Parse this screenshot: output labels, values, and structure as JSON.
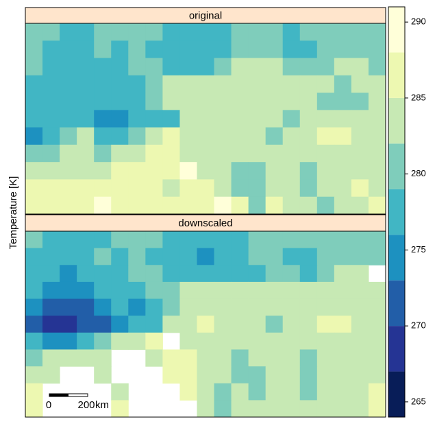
{
  "panels": [
    {
      "title": "original",
      "grid": [
        [
          280,
          279,
          277,
          277,
          280,
          279,
          280,
          280,
          277,
          277,
          277,
          277,
          280,
          280,
          279,
          277,
          280,
          280,
          280,
          280,
          280
        ],
        [
          280,
          278,
          277,
          277,
          279,
          277,
          280,
          277,
          277,
          277,
          278,
          277,
          280,
          281,
          280,
          277,
          278,
          280,
          281,
          280,
          280
        ],
        [
          280,
          278,
          277,
          277,
          277,
          277,
          279,
          280,
          277,
          278,
          277,
          281,
          283,
          283,
          283,
          280,
          281,
          281,
          282,
          283,
          281
        ],
        [
          278,
          277,
          277,
          277,
          277,
          277,
          277,
          280,
          283,
          283,
          283,
          283,
          283,
          283,
          283,
          283,
          283,
          283,
          281,
          283,
          283
        ],
        [
          278,
          278,
          277,
          277,
          277,
          277,
          277,
          280,
          283,
          283,
          283,
          283,
          283,
          283,
          283,
          283,
          283,
          280,
          280,
          281,
          283
        ],
        [
          277,
          276,
          276,
          276,
          275,
          274,
          276,
          276,
          278,
          283,
          283,
          284,
          283,
          283,
          283,
          280,
          283,
          283,
          283,
          283,
          283
        ],
        [
          275,
          277,
          280,
          283,
          278,
          278,
          280,
          283,
          285,
          283,
          283,
          283,
          283,
          283,
          280,
          283,
          283,
          285,
          285,
          283,
          283
        ],
        [
          280,
          280,
          283,
          283,
          280,
          283,
          284,
          285,
          285,
          283,
          283,
          283,
          283,
          283,
          283,
          283,
          283,
          283,
          283,
          283,
          283
        ],
        [
          283,
          283,
          283,
          284,
          283,
          285,
          285,
          285,
          286,
          288,
          283,
          283,
          280,
          280,
          283,
          283,
          281,
          283,
          283,
          283,
          283
        ],
        [
          285,
          285,
          285,
          285,
          285,
          285,
          285,
          285,
          283,
          285,
          285,
          283,
          280,
          280,
          283,
          283,
          280,
          283,
          283,
          285,
          283
        ],
        [
          285,
          285,
          285,
          285,
          289,
          285,
          285,
          285,
          285,
          285,
          285,
          289,
          285,
          280,
          285,
          283,
          283,
          280,
          283,
          283,
          285
        ]
      ]
    },
    {
      "title": "downscaled",
      "grid": [
        [
          280,
          277,
          277,
          277,
          277,
          280,
          280,
          279,
          277,
          277,
          277,
          277,
          277,
          279,
          280,
          280,
          280,
          280,
          280,
          280,
          280
        ],
        [
          277,
          276,
          277,
          277,
          279,
          277,
          280,
          277,
          277,
          276,
          275,
          277,
          278,
          280,
          279,
          277,
          278,
          280,
          281,
          280,
          280
        ],
        [
          277,
          276,
          273,
          277,
          277,
          277,
          279,
          280,
          277,
          278,
          276,
          276,
          277,
          278,
          279,
          280,
          278,
          280,
          282,
          283,
          null
        ],
        [
          276,
          275,
          273,
          274,
          276,
          277,
          277,
          279,
          280,
          283,
          283,
          283,
          283,
          283,
          283,
          283,
          283,
          283,
          283,
          283,
          283
        ],
        [
          274,
          272,
          271,
          272,
          274,
          276,
          275,
          278,
          279,
          282,
          283,
          283,
          283,
          282,
          283,
          283,
          283,
          283,
          283,
          283,
          283
        ],
        [
          271,
          269,
          268,
          270,
          272,
          273,
          277,
          277,
          283,
          284,
          285,
          283,
          283,
          283,
          281,
          283,
          283,
          285,
          285,
          283,
          283
        ],
        [
          276,
          274,
          275,
          278,
          279,
          282,
          284,
          285,
          null,
          283,
          283,
          283,
          283,
          283,
          283,
          283,
          283,
          283,
          283,
          283,
          283
        ],
        [
          281,
          282,
          283,
          284,
          283,
          null,
          null,
          283,
          285,
          285,
          283,
          283,
          281,
          282,
          283,
          283,
          281,
          283,
          283,
          283,
          283
        ],
        [
          283,
          283,
          null,
          null,
          283,
          null,
          null,
          null,
          286,
          285,
          283,
          283,
          281,
          280,
          283,
          283,
          281,
          283,
          283,
          283,
          283
        ],
        [
          285,
          null,
          null,
          null,
          null,
          283,
          null,
          null,
          null,
          285,
          283,
          280,
          283,
          279,
          283,
          283,
          280,
          283,
          283,
          283,
          285
        ],
        [
          285,
          null,
          null,
          null,
          null,
          285,
          null,
          null,
          null,
          null,
          283,
          281,
          283,
          283,
          283,
          283,
          283,
          283,
          283,
          283,
          285
        ]
      ]
    }
  ],
  "colorkey": {
    "label": "Temperature [K]",
    "ylim": [
      264,
      291
    ],
    "breaks": [
      264,
      267,
      270,
      273,
      276,
      279,
      282,
      285,
      288,
      291
    ],
    "colors": [
      "#081d58",
      "#253494",
      "#225ea8",
      "#1d91c0",
      "#41b6c4",
      "#7fcdbb",
      "#c7e9b4",
      "#edf8b1",
      "#ffffd9"
    ],
    "yticks": [
      265,
      270,
      275,
      280,
      285,
      290
    ]
  },
  "scale_bar": {
    "labels": [
      "0",
      "200",
      "km"
    ]
  }
}
